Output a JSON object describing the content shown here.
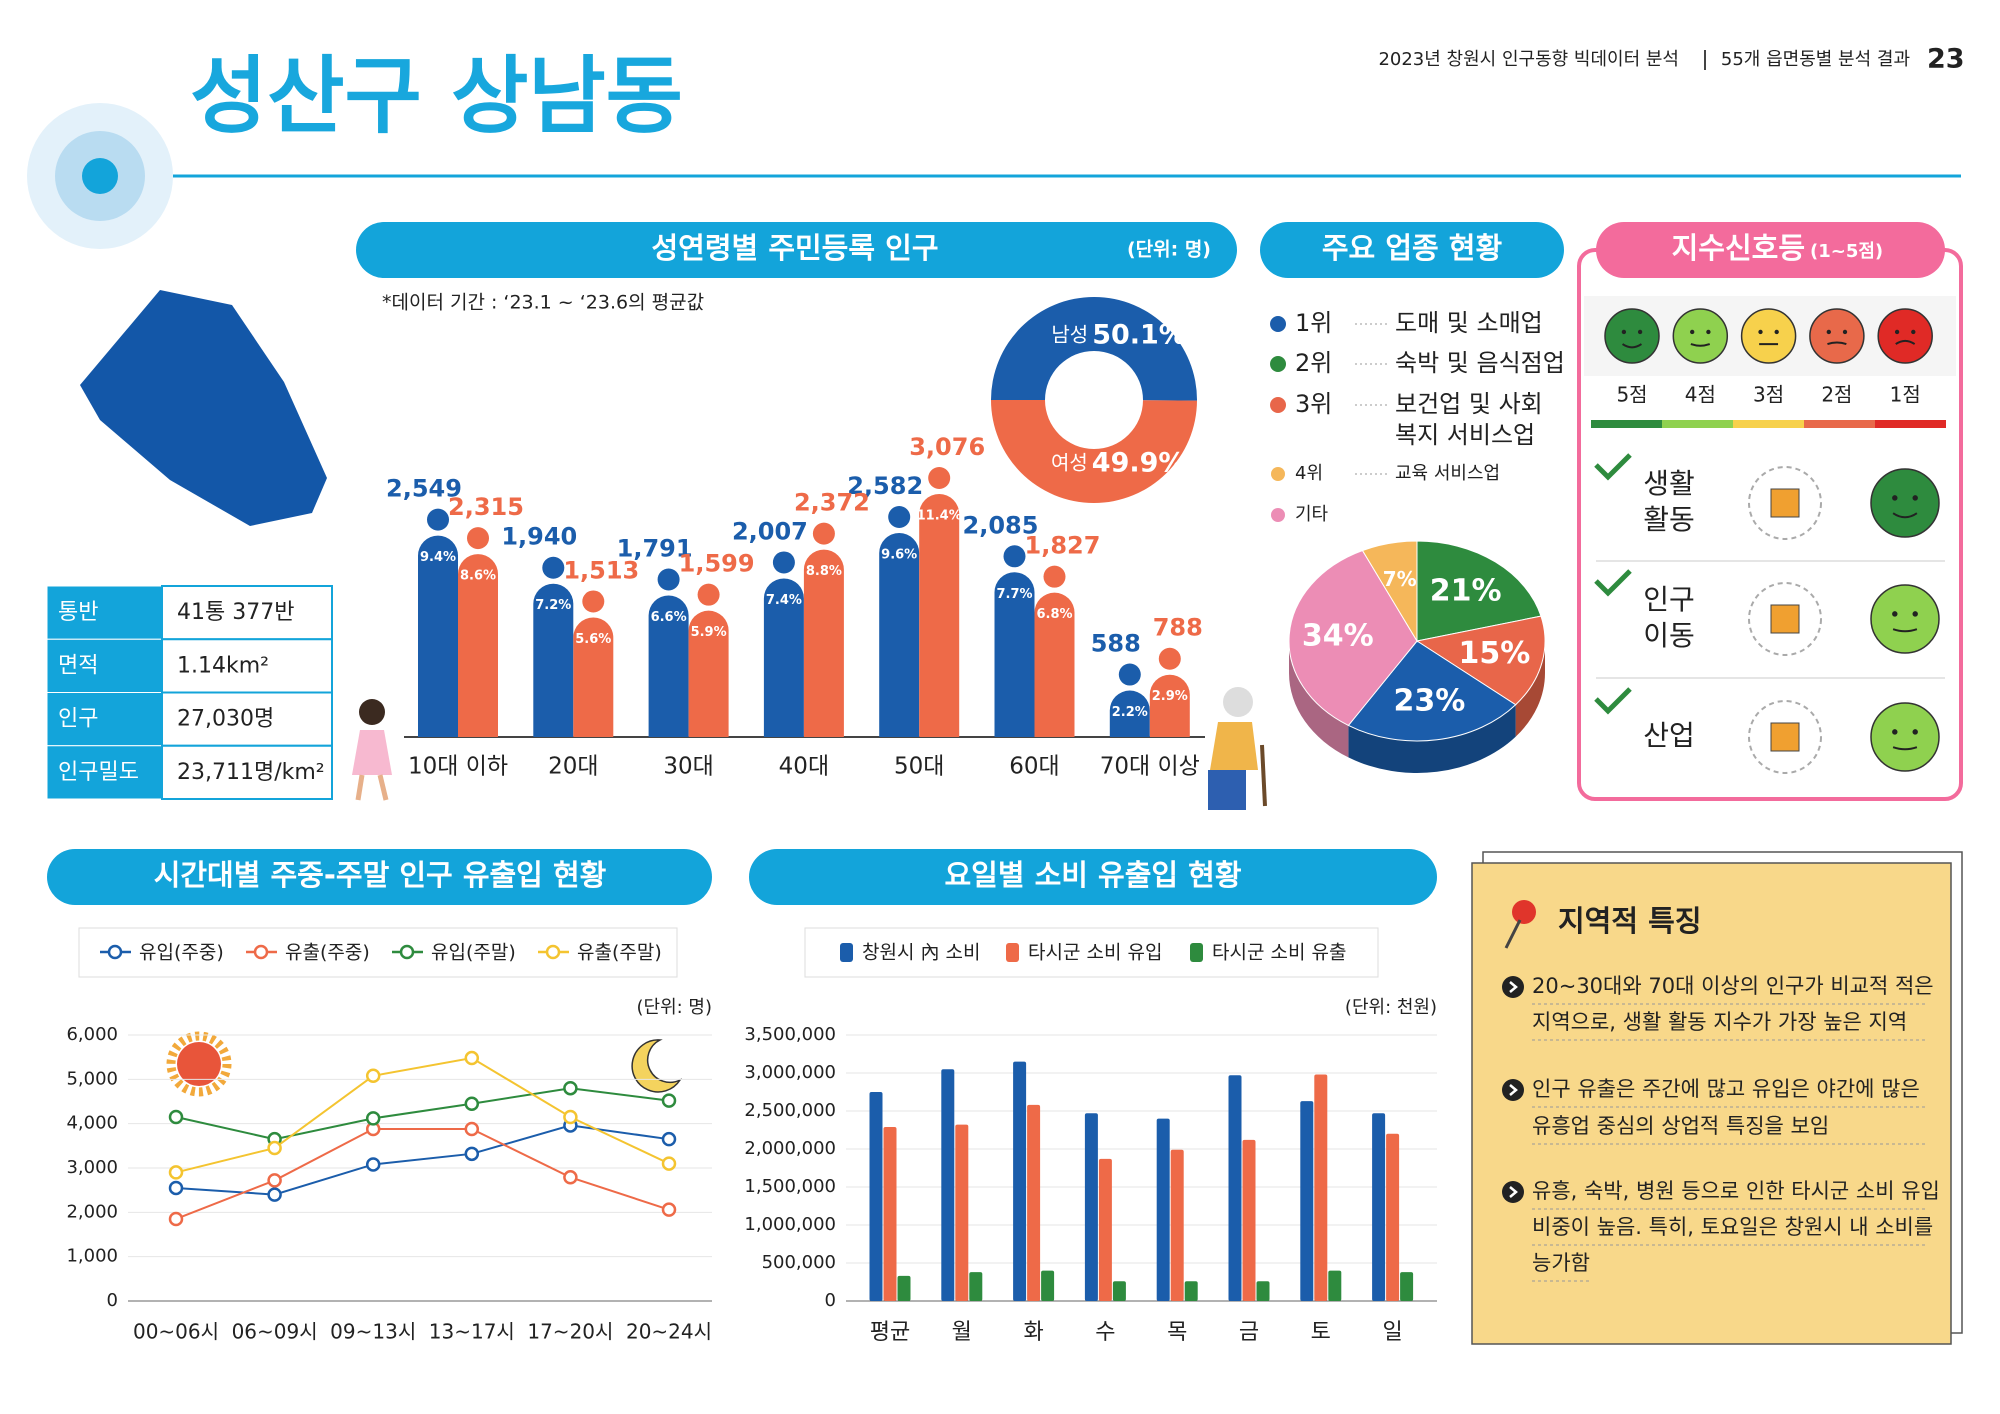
{
  "header": {
    "report": "2023년 창원시 인구동향 빅데이터 분석",
    "section": "55개 읍면동별 분석 결과",
    "page": "23"
  },
  "title": "성산구 상남동",
  "info_table": {
    "rows": [
      [
        "통반",
        "41통 377반"
      ],
      [
        "면적",
        "1.14km²"
      ],
      [
        "인구",
        "27,030명"
      ],
      [
        "인구밀도",
        "23,711명/km²"
      ]
    ]
  },
  "chart_data": [
    {
      "type": "bar",
      "title": "성연령별 주민등록 인구",
      "unit": "(단위: 명)",
      "note": "*데이터 기간 : ‘23.1 ~ ‘23.6의 평균값",
      "categories": [
        "10대 이하",
        "20대",
        "30대",
        "40대",
        "50대",
        "60대",
        "70대 이상"
      ],
      "series": [
        {
          "color": "#1b5dab",
          "values": [
            2549,
            1940,
            1791,
            2007,
            2582,
            2085,
            588
          ],
          "value_labels": [
            "2,549",
            "1,940",
            "1,791",
            "2,007",
            "2,582",
            "2,085",
            "588"
          ],
          "share_labels": [
            "9.4%",
            "7.2%",
            "6.6%",
            "7.4%",
            "9.6%",
            "7.7%",
            "2.2%"
          ]
        },
        {
          "color": "#ee6a48",
          "values": [
            2315,
            1513,
            1599,
            2372,
            3076,
            1827,
            788
          ],
          "value_labels": [
            "2,315",
            "1,513",
            "1,599",
            "2,372",
            "3,076",
            "1,827",
            "788"
          ],
          "share_labels": [
            "8.6%",
            "5.6%",
            "5.9%",
            "8.8%",
            "11.4%",
            "6.8%",
            "2.9%"
          ]
        }
      ]
    },
    {
      "type": "donut",
      "categories": [
        "남성",
        "여성"
      ],
      "values": [
        50.1,
        49.9
      ],
      "value_labels": [
        "50.1%",
        "49.9%"
      ],
      "colors": [
        "#1b5dab",
        "#ee6a48"
      ]
    },
    {
      "type": "pie",
      "title": "주요 업종 현황",
      "values": [
        21,
        15,
        23,
        34,
        7
      ],
      "value_labels": [
        "21%",
        "15%",
        "23%",
        "34%",
        "7%"
      ],
      "colors": [
        "#2e8b3e",
        "#e8664a",
        "#1b5dab",
        "#ec8db5",
        "#f5b75a"
      ],
      "legend": [
        {
          "rank": "1위",
          "name": [
            "도매 및 소매업"
          ],
          "color": "#1b5dab"
        },
        {
          "rank": "2위",
          "name": [
            "숙박 및 음식점업"
          ],
          "color": "#2e8b3e"
        },
        {
          "rank": "3위",
          "name": [
            "보건업 및 사회",
            "복지 서비스업"
          ],
          "color": "#e8664a"
        },
        {
          "rank": "4위",
          "name": [
            "교육 서비스업"
          ],
          "color": "#f5b75a"
        },
        {
          "name": [
            "기타"
          ],
          "color": "#ec8db5"
        }
      ]
    },
    {
      "type": "line",
      "title": "시간대별 주중-주말 인구 유출입 현황",
      "unit": "(단위: 명)",
      "categories": [
        "00~06시",
        "06~09시",
        "09~13시",
        "13~17시",
        "17~20시",
        "20~24시"
      ],
      "ylim": [
        0,
        6000
      ],
      "yticks": [
        0,
        {
          "value": 1000,
          "label": "1,000"
        },
        {
          "value": 2000,
          "label": "2,000"
        },
        {
          "value": 3000,
          "label": "3,000"
        },
        {
          "value": 4000,
          "label": "4,000"
        },
        {
          "value": 5000,
          "label": "5,000"
        },
        {
          "value": 6000,
          "label": "6,000"
        }
      ],
      "grid": true,
      "series": [
        {
          "name": "유입(주중)",
          "color": "#1b5dab",
          "values": [
            2550,
            2400,
            3080,
            3320,
            3960,
            3650
          ]
        },
        {
          "name": "유출(주중)",
          "color": "#ee6a48",
          "values": [
            1850,
            2720,
            3880,
            3880,
            2790,
            2060
          ]
        },
        {
          "name": "유입(주말)",
          "color": "#2e8b3e",
          "values": [
            4150,
            3650,
            4120,
            4450,
            4800,
            4520
          ]
        },
        {
          "name": "유출(주말)",
          "color": "#f4c430",
          "values": [
            2900,
            3450,
            5080,
            5480,
            4150,
            3100
          ]
        }
      ]
    },
    {
      "type": "bar",
      "title": "요일별 소비 유출입 현황",
      "unit": "(단위: 천원)",
      "categories": [
        "평균",
        "월",
        "화",
        "수",
        "목",
        "금",
        "토",
        "일"
      ],
      "ylim": [
        0,
        3500000
      ],
      "yticks": [
        0,
        {
          "value": 500000,
          "label": "500,000"
        },
        {
          "value": 1000000,
          "label": "1,000,000"
        },
        {
          "value": 1500000,
          "label": "1,500,000"
        },
        {
          "value": 2000000,
          "label": "2,000,000"
        },
        {
          "value": 2500000,
          "label": "2,500,000"
        },
        {
          "value": 3000000,
          "label": "3,000,000"
        },
        {
          "value": 3500000,
          "label": "3,500,000"
        }
      ],
      "grid": true,
      "series": [
        {
          "name": "창원시 內 소비",
          "color": "#1b5dab",
          "values": [
            2750000,
            3050000,
            3150000,
            2470000,
            2400000,
            2970000,
            2630000,
            2470000
          ]
        },
        {
          "name": "타시군 소비 유입",
          "color": "#ee6a48",
          "values": [
            2290000,
            2320000,
            2580000,
            1870000,
            1990000,
            2120000,
            2980000,
            2200000
          ]
        },
        {
          "name": "타시군 소비 유출",
          "color": "#2e8b3e",
          "values": [
            330000,
            380000,
            400000,
            260000,
            260000,
            260000,
            400000,
            380000
          ]
        }
      ]
    }
  ],
  "signals": {
    "title": "지수신호등",
    "subtitle": "(1~5점)",
    "scale": [
      {
        "score": 5,
        "label": "5점",
        "color": "#2e8b3e"
      },
      {
        "score": 4,
        "label": "4점",
        "color": "#8fd14f"
      },
      {
        "score": 3,
        "label": "3점",
        "color": "#f7d14c"
      },
      {
        "score": 2,
        "label": "2점",
        "color": "#e8694a"
      },
      {
        "score": 1,
        "label": "1점",
        "color": "#e02a26"
      }
    ],
    "items": [
      {
        "label": [
          "생활",
          "활동"
        ],
        "score": 5
      },
      {
        "label": [
          "인구",
          "이동"
        ],
        "score": 4
      },
      {
        "label": [
          "산업"
        ],
        "score": 4
      }
    ]
  },
  "features": {
    "title": "지역적 특징",
    "items": [
      [
        "20~30대와 70대 이상의 인구가 비교적 적은",
        "지역으로, 생활 활동 지수가 가장 높은 지역"
      ],
      [
        "인구 유출은 주간에 많고 유입은 야간에 많은",
        "유흥업 중심의 상업적 특징을 보임"
      ],
      [
        "유흥, 숙박, 병원 등으로 인한 타시군 소비 유입",
        "비중이 높음. 특히, 토요일은 창원시 내 소비를",
        "능가함"
      ]
    ]
  }
}
